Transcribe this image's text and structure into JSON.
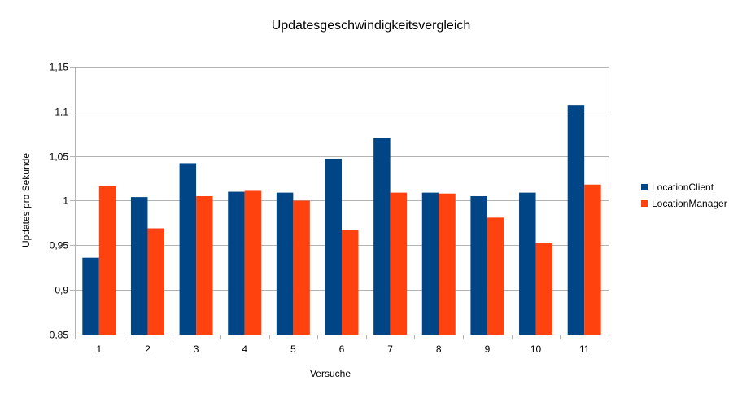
{
  "chart_data": {
    "type": "bar",
    "title": "Updatesgeschwindigkeitsvergleich",
    "xlabel": "Versuche",
    "ylabel": "Updates pro Sekunde",
    "categories": [
      "1",
      "2",
      "3",
      "4",
      "5",
      "6",
      "7",
      "8",
      "9",
      "10",
      "11"
    ],
    "ylim": [
      0.85,
      1.15
    ],
    "yticks": [
      0.85,
      0.9,
      0.95,
      1,
      1.05,
      1.1,
      1.15
    ],
    "ytick_labels": [
      "0,85",
      "0,9",
      "0,95",
      "1",
      "1,05",
      "1,1",
      "1,15"
    ],
    "grid": true,
    "legend_position": "right",
    "series": [
      {
        "name": "LocationClient",
        "color": "#004586",
        "values": [
          0.936,
          1.004,
          1.042,
          1.01,
          1.009,
          1.047,
          1.07,
          1.009,
          1.005,
          1.009,
          1.107
        ]
      },
      {
        "name": "LocationManager",
        "color": "#ff420e",
        "values": [
          1.016,
          0.969,
          1.005,
          1.011,
          1.0,
          0.967,
          1.009,
          1.008,
          0.981,
          0.953,
          1.018
        ]
      }
    ]
  }
}
